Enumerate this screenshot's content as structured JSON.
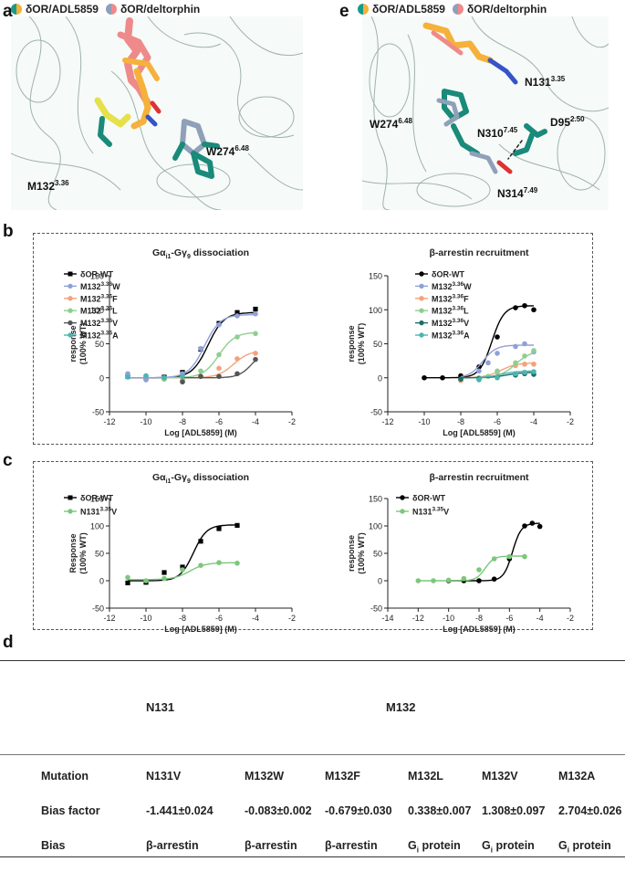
{
  "legend_labels": {
    "a": [
      "δOR/ADL5859",
      "δOR/deltorphin"
    ],
    "e": [
      "δOR/ADL5859",
      "δOR/deltorphin"
    ]
  },
  "legend_colors": {
    "adl": [
      "#1a9a8a",
      "#f5b13a"
    ],
    "delt": [
      "#8fa0b8",
      "#ef8a8a"
    ]
  },
  "panels": {
    "a": "a",
    "b": "b",
    "c": "c",
    "d": "d",
    "e": "e"
  },
  "structure_a": {
    "labels": [
      "M132",
      "W274"
    ],
    "sups": [
      "3.36",
      "6.48"
    ]
  },
  "structure_e": {
    "labels": [
      "N131",
      "W274",
      "N310",
      "D95",
      "N314"
    ],
    "sups": [
      "3.35",
      "6.48",
      "7.45",
      "2.50",
      "7.49"
    ]
  },
  "chart_data": [
    {
      "type": "line",
      "panel": "b",
      "title": "Gα_i1-Gγ_9 dissociation",
      "title_parts": {
        "pre": "Gα",
        "sub1": "i1",
        "mid": "-Gγ",
        "sub2": "9",
        "post": " dissociation"
      },
      "xlabel": "Log [ADL5859] (M)",
      "ylabel": [
        "response",
        "(100% WT)"
      ],
      "xlim": [
        -12,
        -2
      ],
      "ylim": [
        -50,
        150
      ],
      "xticks": [
        -12,
        -10,
        -8,
        -6,
        -4,
        -2
      ],
      "yticks": [
        -50,
        0,
        50,
        100,
        150
      ],
      "series": [
        {
          "name": "δOR-WT",
          "base": "δOR-WT",
          "sup": "",
          "suffix": "",
          "color": "#000000",
          "marker": "square",
          "fit": {
            "bottom": 0,
            "top": 96,
            "ec50": -6.6,
            "hill": 1
          },
          "x": [
            -11,
            -10,
            -9,
            -8,
            -7,
            -6,
            -5,
            -4
          ],
          "y": [
            2,
            0,
            1,
            8,
            42,
            80,
            96,
            101
          ]
        },
        {
          "name": "M132 3.36 W",
          "base": "M132",
          "sup": "3.36",
          "suffix": "W",
          "color": "#8fa0d6",
          "marker": "circle",
          "fit": {
            "bottom": 0,
            "top": 93,
            "ec50": -6.8,
            "hill": 1
          },
          "x": [
            -11,
            -10,
            -9,
            -8,
            -7,
            -6,
            -5,
            -4
          ],
          "y": [
            6,
            -3,
            0,
            6,
            43,
            78,
            91,
            94
          ]
        },
        {
          "name": "M132 3.36 F",
          "base": "M132",
          "sup": "3.36",
          "suffix": "F",
          "color": "#f4a27a",
          "marker": "circle",
          "fit": {
            "bottom": 0,
            "top": 40,
            "ec50": -5.2,
            "hill": 1
          },
          "x": [
            -9,
            -8,
            -7,
            -6,
            -5,
            -4
          ],
          "y": [
            -2,
            -3,
            2,
            14,
            28,
            36
          ]
        },
        {
          "name": "M132 3.36 L",
          "base": "M132",
          "sup": "3.36",
          "suffix": "L",
          "color": "#8fce8f",
          "marker": "circle",
          "fit": {
            "bottom": 0,
            "top": 67,
            "ec50": -6.0,
            "hill": 1
          },
          "x": [
            -9,
            -8,
            -7,
            -6,
            -5,
            -4
          ],
          "y": [
            -2,
            -4,
            10,
            34,
            60,
            65
          ]
        },
        {
          "name": "M132 3.36 V",
          "base": "M132",
          "sup": "3.36",
          "suffix": "V",
          "color": "#555555",
          "marker": "circle",
          "fit": {
            "bottom": 0,
            "top": 40,
            "ec50": -4.2,
            "hill": 1.2
          },
          "x": [
            -8,
            -7,
            -6,
            -5,
            -4
          ],
          "y": [
            -6,
            2,
            2,
            6,
            27
          ]
        },
        {
          "name": "M132 3.36 A",
          "base": "M132",
          "sup": "3.36",
          "suffix": "A",
          "color": "#4bb5b0",
          "marker": "circle",
          "fit": {
            "bottom": 0,
            "top": 0,
            "ec50": -6,
            "hill": 1
          },
          "x": [
            -11,
            -10,
            -9,
            -8
          ],
          "y": [
            1,
            3,
            0,
            2
          ]
        }
      ]
    },
    {
      "type": "line",
      "panel": "b",
      "title": "β-arrestin recruitment",
      "title_parts": {
        "pre": "β-arrestin recruitment",
        "sub1": "",
        "mid": "",
        "sub2": "",
        "post": ""
      },
      "xlabel": "Log [ADL5859] (M)",
      "ylabel": [
        "response",
        "(100% WT)"
      ],
      "xlim": [
        -12,
        -2
      ],
      "ylim": [
        -50,
        150
      ],
      "xticks": [
        -12,
        -10,
        -8,
        -6,
        -4,
        -2
      ],
      "yticks": [
        -50,
        0,
        50,
        100,
        150
      ],
      "series": [
        {
          "name": "δOR-WT",
          "base": "δOR-WT",
          "sup": "",
          "suffix": "",
          "color": "#000000",
          "marker": "circle",
          "fit": {
            "bottom": 0,
            "top": 106,
            "ec50": -6.3,
            "hill": 1.3
          },
          "x": [
            -10,
            -9,
            -8,
            -7,
            -6,
            -5,
            -4.5,
            -4
          ],
          "y": [
            0,
            0,
            3,
            16,
            60,
            103,
            106,
            100
          ]
        },
        {
          "name": "M132 3.36 W",
          "base": "M132",
          "sup": "3.36",
          "suffix": "W",
          "color": "#8fa0d6",
          "marker": "circle",
          "fit": {
            "bottom": 0,
            "top": 48,
            "ec50": -6.8,
            "hill": 1.2
          },
          "x": [
            -8,
            -7,
            -6.5,
            -6,
            -5,
            -4.5,
            -4
          ],
          "y": [
            -3,
            10,
            22,
            36,
            46,
            50,
            38
          ]
        },
        {
          "name": "M132 3.36 F",
          "base": "M132",
          "sup": "3.36",
          "suffix": "F",
          "color": "#f4a27a",
          "marker": "circle",
          "fit": {
            "bottom": 0,
            "top": 22,
            "ec50": -5.8,
            "hill": 1
          },
          "x": [
            -8,
            -7,
            -6.5,
            -6,
            -5,
            -4.5,
            -4
          ],
          "y": [
            -4,
            -2,
            2,
            8,
            18,
            20,
            20
          ]
        },
        {
          "name": "M132 3.36 L",
          "base": "M132",
          "sup": "3.36",
          "suffix": "L",
          "color": "#8fce8f",
          "marker": "circle",
          "fit": {
            "bottom": 0,
            "top": 40,
            "ec50": -5.0,
            "hill": 1
          },
          "x": [
            -8,
            -7,
            -6.5,
            -6,
            -5,
            -4.5,
            -4
          ],
          "y": [
            -2,
            0,
            2,
            10,
            22,
            32,
            40
          ]
        },
        {
          "name": "M132 3.36 V",
          "base": "M132",
          "sup": "3.36",
          "suffix": "V",
          "color": "#1a6f6a",
          "marker": "circle",
          "fit": {
            "bottom": 0,
            "top": 8,
            "ec50": -5.5,
            "hill": 1
          },
          "x": [
            -8,
            -7,
            -6,
            -5,
            -4.5,
            -4
          ],
          "y": [
            -2,
            -1,
            1,
            4,
            6,
            5
          ]
        },
        {
          "name": "M132 3.36 A",
          "base": "M132",
          "sup": "3.36",
          "suffix": "A",
          "color": "#4bb5b0",
          "marker": "circle",
          "fit": {
            "bottom": 0,
            "top": 10,
            "ec50": -5.8,
            "hill": 1
          },
          "x": [
            -7,
            -6,
            -5,
            -4.5,
            -4
          ],
          "y": [
            -3,
            0,
            6,
            8,
            9
          ]
        }
      ]
    },
    {
      "type": "line",
      "panel": "c",
      "title": "Gα_i1-Gγ_9 dissociation",
      "title_parts": {
        "pre": "Gα",
        "sub1": "i1",
        "mid": "-Gγ",
        "sub2": "9",
        "post": " dissociation"
      },
      "xlabel": "Log [ADL5859] (M)",
      "ylabel": [
        "Response",
        "(100% WT)"
      ],
      "xlim": [
        -12,
        -2
      ],
      "ylim": [
        -50,
        150
      ],
      "xticks": [
        -12,
        -10,
        -8,
        -6,
        -4,
        -2
      ],
      "yticks": [
        -50,
        0,
        50,
        100,
        150
      ],
      "series": [
        {
          "name": "δOR-WT",
          "base": "δOR-WT",
          "sup": "",
          "suffix": "",
          "color": "#000000",
          "marker": "square",
          "fit": {
            "bottom": 0,
            "top": 102,
            "ec50": -7.4,
            "hill": 1.2
          },
          "x": [
            -11,
            -10,
            -9,
            -8,
            -7,
            -6,
            -5
          ],
          "y": [
            -4,
            -3,
            15,
            25,
            72,
            95,
            101
          ]
        },
        {
          "name": "N131 3.35 V",
          "base": "N131",
          "sup": "3.35",
          "suffix": "V",
          "color": "#7cc77c",
          "marker": "circle",
          "fit": {
            "bottom": 2,
            "top": 33,
            "ec50": -7.6,
            "hill": 1
          },
          "x": [
            -11,
            -10,
            -9,
            -8,
            -7,
            -6,
            -5
          ],
          "y": [
            6,
            0,
            4,
            20,
            28,
            33,
            32
          ]
        }
      ]
    },
    {
      "type": "line",
      "panel": "c",
      "title": "β-arrestin recruitment",
      "title_parts": {
        "pre": "β-arrestin recruitment",
        "sub1": "",
        "mid": "",
        "sub2": "",
        "post": ""
      },
      "xlabel": "Log [ADL5859] (M)",
      "ylabel": [
        "response",
        "(100% WT)"
      ],
      "xlim": [
        -14,
        -2
      ],
      "ylim": [
        -50,
        150
      ],
      "xticks": [
        -14,
        -12,
        -10,
        -8,
        -6,
        -4,
        -2
      ],
      "yticks": [
        -50,
        0,
        50,
        100,
        150
      ],
      "series": [
        {
          "name": "δOR-WT",
          "base": "δOR-WT",
          "sup": "",
          "suffix": "",
          "color": "#000000",
          "marker": "circle",
          "fit": {
            "bottom": 0,
            "top": 105,
            "ec50": -5.8,
            "hill": 1.5
          },
          "x": [
            -10,
            -9,
            -8,
            -7,
            -6,
            -5,
            -4.5,
            -4
          ],
          "y": [
            0,
            0,
            0,
            3,
            40,
            100,
            105,
            99
          ]
        },
        {
          "name": "N131 3.35 V",
          "base": "N131",
          "sup": "3.35",
          "suffix": "V",
          "color": "#7cc77c",
          "marker": "circle",
          "fit": {
            "bottom": 0,
            "top": 45,
            "ec50": -7.6,
            "hill": 1.5
          },
          "x": [
            -12,
            -11,
            -10,
            -9,
            -8,
            -7,
            -6,
            -5
          ],
          "y": [
            0,
            0,
            1,
            4,
            20,
            40,
            44,
            44
          ]
        }
      ]
    }
  ],
  "table": {
    "group_headers": [
      "N131",
      "M132"
    ],
    "rows": [
      {
        "label": "Mutation",
        "cells": [
          "N131V",
          "M132W",
          "M132F",
          "M132L",
          "M132V",
          "M132A"
        ]
      },
      {
        "label": "Bias factor",
        "cells": [
          "-1.441±0.024",
          "-0.083±0.002",
          "-0.679±0.030",
          "0.338±0.007",
          "1.308±0.097",
          "2.704±0.026"
        ]
      },
      {
        "label": "Bias",
        "cells": [
          "β-arrestin",
          "β-arrestin",
          "β-arrestin",
          "G protein",
          "G protein",
          "G protein"
        ],
        "subs": [
          "",
          "",
          "",
          "i",
          "i",
          "i"
        ]
      }
    ]
  }
}
